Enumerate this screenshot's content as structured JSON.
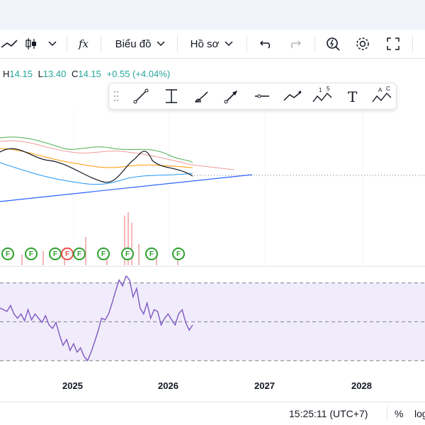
{
  "toolbar": {
    "chart_menu_label": "Biểu đồ",
    "profile_menu_label": "Hồ sơ",
    "fx_label": "fx"
  },
  "ohlc": {
    "h_label": "H",
    "h_value": "14.15",
    "l_label": "L",
    "l_value": "13.40",
    "c_label": "C",
    "c_value": "14.15",
    "change": "+0.55 (+4.04%)"
  },
  "drawing_tools": [
    "trend-line",
    "price-range",
    "brush",
    "arrow",
    "horizontal-line",
    "path",
    "elliott-wave",
    "text",
    "abcd-pattern"
  ],
  "drawing_tool_marks": {
    "elliott": [
      "1",
      "5"
    ],
    "text": "T",
    "abcd": [
      "A",
      "C"
    ]
  },
  "events": {
    "label": "F"
  },
  "time_axis": [
    "2025",
    "2026",
    "2027",
    "2028"
  ],
  "status": {
    "time": "15:25:11 (UTC+7)",
    "percent": "%",
    "log": "log"
  },
  "colors": {
    "accent": "#2962ff",
    "up": "#26a69a",
    "down": "#ef5350",
    "rsi": "#7e57c2",
    "rsi_band": "#f1ecfb",
    "earnings": "#2ca02c"
  },
  "chart_data": [
    {
      "type": "line",
      "title": "",
      "description_note": "",
      "series": [
        {
          "name": "",
          "values": [
            0.62,
            0.6,
            0.58,
            0.65,
            0.55,
            0.5,
            0.55,
            0.47,
            0.6,
            0.48,
            0.55,
            0.5,
            0.45,
            0.53,
            0.42,
            0.38,
            0.45,
            0.3,
            0.18,
            0.25,
            0.12,
            0.2,
            0.1,
            0.15,
            0.05,
            0.0,
            0.1,
            0.22,
            0.35,
            0.5,
            0.48,
            0.55,
            0.68,
            0.82,
            0.95,
            0.88,
            1.0,
            0.95,
            0.75,
            0.85,
            0.62,
            0.55,
            0.68,
            0.5,
            0.6,
            0.58,
            0.42,
            0.5,
            0.55,
            0.48,
            0.42,
            0.55,
            0.6,
            0.45,
            0.36,
            0.42
          ]
        }
      ]
    }
  ]
}
